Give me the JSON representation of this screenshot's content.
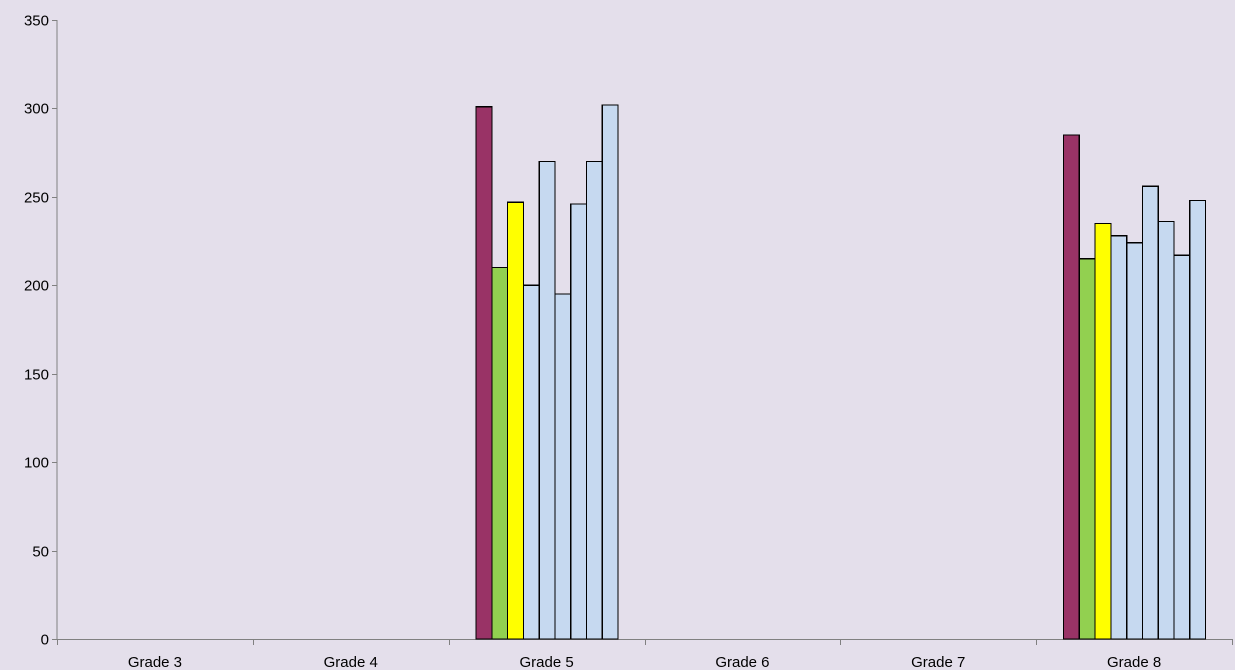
{
  "chart_data": {
    "type": "bar",
    "title": "",
    "xlabel": "",
    "ylabel": "",
    "ylim": [
      0,
      350
    ],
    "yticks": [
      0,
      50,
      100,
      150,
      200,
      250,
      300,
      350
    ],
    "grid": false,
    "legend": "none",
    "categories": [
      "Grade 3",
      "Grade 4",
      "Grade 5",
      "Grade 6",
      "Grade 7",
      "Grade 8"
    ],
    "series": [
      {
        "color": "#993366",
        "values": [
          null,
          null,
          301,
          null,
          null,
          285
        ]
      },
      {
        "color": "#92d050",
        "values": [
          null,
          null,
          210,
          null,
          null,
          215
        ]
      },
      {
        "color": "#ffff00",
        "values": [
          null,
          null,
          247,
          null,
          null,
          235
        ]
      },
      {
        "color": "#c6d9f0",
        "values": [
          null,
          null,
          200,
          null,
          null,
          228
        ]
      },
      {
        "color": "#c6d9f0",
        "values": [
          null,
          null,
          270,
          null,
          null,
          224
        ]
      },
      {
        "color": "#c6d9f0",
        "values": [
          null,
          null,
          195,
          null,
          null,
          256
        ]
      },
      {
        "color": "#c6d9f0",
        "values": [
          null,
          null,
          246,
          null,
          null,
          236
        ]
      },
      {
        "color": "#c6d9f0",
        "values": [
          null,
          null,
          270,
          null,
          null,
          217
        ]
      },
      {
        "color": "#c6d9f0",
        "values": [
          null,
          null,
          302,
          null,
          null,
          248
        ]
      }
    ],
    "background": "#e4dfeb"
  }
}
